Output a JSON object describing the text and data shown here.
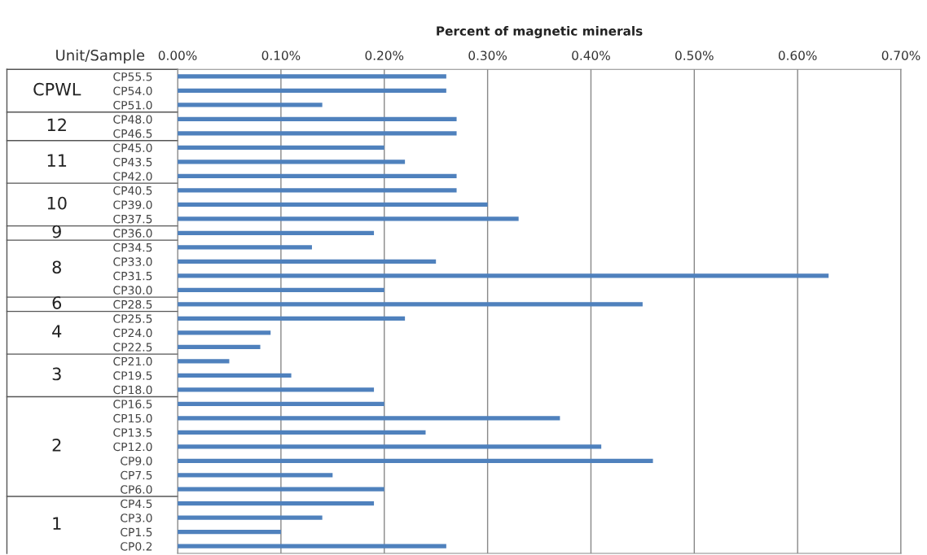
{
  "chart_data": {
    "type": "bar",
    "orientation": "horizontal",
    "title": "Percent of magnetic minerals",
    "ylabel": "Unit/Sample",
    "categories": [
      "CP55.5",
      "CP54.0",
      "CP51.0",
      "CP48.0",
      "CP46.5",
      "CP45.0",
      "CP43.5",
      "CP42.0",
      "CP40.5",
      "CP39.0",
      "CP37.5",
      "CP36.0",
      "CP34.5",
      "CP33.0",
      "CP31.5",
      "CP30.0",
      "CP28.5",
      "CP25.5",
      "CP24.0",
      "CP22.5",
      "CP21.0",
      "CP19.5",
      "CP18.0",
      "CP16.5",
      "CP15.0",
      "CP13.5",
      "CP12.0",
      "CP9.0",
      "CP7.5",
      "CP6.0",
      "CP4.5",
      "CP3.0",
      "CP1.5",
      "CP0.2"
    ],
    "values": [
      0.26,
      0.26,
      0.14,
      0.27,
      0.27,
      0.2,
      0.22,
      0.27,
      0.27,
      0.3,
      0.33,
      0.19,
      0.13,
      0.25,
      0.63,
      0.2,
      0.45,
      0.22,
      0.09,
      0.08,
      0.05,
      0.11,
      0.19,
      0.2,
      0.37,
      0.24,
      0.41,
      0.46,
      0.15,
      0.2,
      0.19,
      0.14,
      0.1,
      0.26
    ],
    "color": "#4f81bd",
    "xlim": [
      0,
      0.7
    ],
    "xticks": [
      {
        "value": 0,
        "label": "0.00%"
      },
      {
        "value": 0.1,
        "label": "0.10%"
      },
      {
        "value": 0.2,
        "label": "0.20%"
      },
      {
        "value": 0.3,
        "label": "0.30%"
      },
      {
        "value": 0.4,
        "label": "0.40%"
      },
      {
        "value": 0.5,
        "label": "0.50%"
      },
      {
        "value": 0.6,
        "label": "0.60%"
      },
      {
        "value": 0.7,
        "label": "0.70%"
      }
    ],
    "grid": "x",
    "annotations": [
      "CPWL",
      "12",
      "11",
      "10",
      "9",
      "8",
      "6",
      "4",
      "3",
      "2",
      "1"
    ]
  }
}
